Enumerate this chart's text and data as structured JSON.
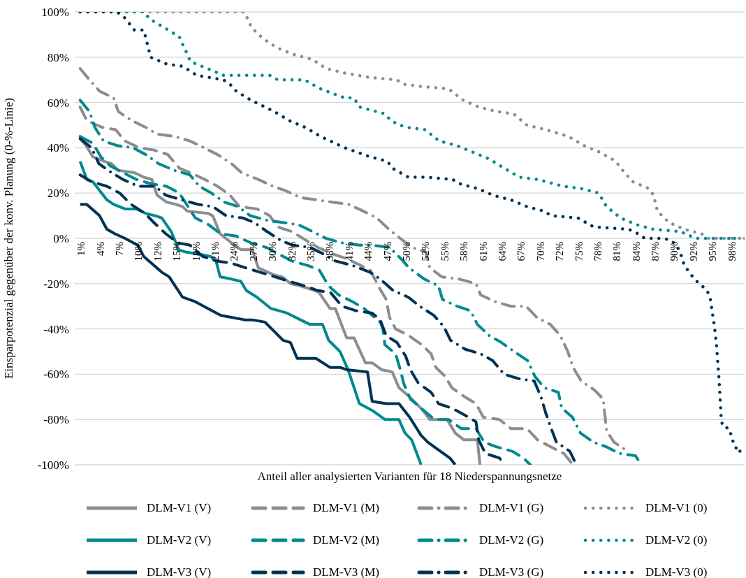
{
  "chart_data": {
    "type": "line",
    "xlabel": "Anteil aller analysierten Varianten für 18 Niederspannungsnetze",
    "ylabel": "Einsparpotenzial gegenüber der konv. Planung (0-%-Linie)",
    "xlim": [
      0,
      100
    ],
    "ylim": [
      -100,
      100
    ],
    "xticks": [
      {
        "value": 0.95,
        "label": "1%"
      },
      {
        "value": 3.81,
        "label": "4%"
      },
      {
        "value": 6.67,
        "label": "7%"
      },
      {
        "value": 9.52,
        "label": "10%"
      },
      {
        "value": 12.38,
        "label": "12%"
      },
      {
        "value": 15.24,
        "label": "15%"
      },
      {
        "value": 18.1,
        "label": "18%"
      },
      {
        "value": 20.95,
        "label": "21%"
      },
      {
        "value": 23.81,
        "label": "24%"
      },
      {
        "value": 26.67,
        "label": "27%"
      },
      {
        "value": 29.52,
        "label": "30%"
      },
      {
        "value": 32.38,
        "label": "32%"
      },
      {
        "value": 35.24,
        "label": "35%"
      },
      {
        "value": 38.1,
        "label": "38%"
      },
      {
        "value": 40.95,
        "label": "41%"
      },
      {
        "value": 43.81,
        "label": "44%"
      },
      {
        "value": 46.67,
        "label": "47%"
      },
      {
        "value": 49.52,
        "label": "50%"
      },
      {
        "value": 52.38,
        "label": "52%"
      },
      {
        "value": 55.24,
        "label": "55%"
      },
      {
        "value": 58.1,
        "label": "58%"
      },
      {
        "value": 60.95,
        "label": "61%"
      },
      {
        "value": 63.81,
        "label": "64%"
      },
      {
        "value": 66.67,
        "label": "67%"
      },
      {
        "value": 69.52,
        "label": "70%"
      },
      {
        "value": 72.38,
        "label": "72%"
      },
      {
        "value": 75.24,
        "label": "75%"
      },
      {
        "value": 78.1,
        "label": "78%"
      },
      {
        "value": 80.95,
        "label": "81%"
      },
      {
        "value": 83.81,
        "label": "84%"
      },
      {
        "value": 86.67,
        "label": "87%"
      },
      {
        "value": 89.52,
        "label": "90%"
      },
      {
        "value": 92.38,
        "label": "92%"
      },
      {
        "value": 95.24,
        "label": "95%"
      },
      {
        "value": 98.1,
        "label": "98%"
      }
    ],
    "yticks": [
      {
        "value": -100,
        "label": "-100%"
      },
      {
        "value": -80,
        "label": "-80%"
      },
      {
        "value": -60,
        "label": "-60%"
      },
      {
        "value": -40,
        "label": "-40%"
      },
      {
        "value": -20,
        "label": "-20%"
      },
      {
        "value": 0,
        "label": "0%"
      },
      {
        "value": 20,
        "label": "20%"
      },
      {
        "value": 40,
        "label": "40%"
      },
      {
        "value": 60,
        "label": "60%"
      },
      {
        "value": 80,
        "label": "80%"
      },
      {
        "value": 100,
        "label": "100%"
      }
    ],
    "grid": "y",
    "legend": "bottom",
    "series": [
      {
        "name": "DLM-V1 (V)",
        "color": "#8c8c91",
        "line_style": "solid",
        "x": [
          0.8,
          1.7,
          2.7,
          4.4,
          5.5,
          6.5,
          8.9,
          10.3,
          11.5,
          12.3,
          13.7,
          15.1,
          16.1,
          16.8,
          19.9,
          20.6,
          21.7,
          23.4,
          24.8,
          26.5,
          27.4,
          29.6,
          31,
          32.2,
          33.7,
          35.8,
          36.5,
          38.1,
          38.9,
          40.6,
          41.7,
          43.4,
          44.4,
          45.8,
          47.4,
          48.4,
          50,
          52,
          53,
          55.6,
          56.8,
          58.1,
          60.1,
          60.5
        ],
        "values": [
          44,
          41,
          36,
          34,
          33,
          30,
          29,
          27,
          26,
          19,
          16,
          15,
          14,
          12,
          11,
          10,
          2,
          -2,
          -5,
          -5,
          -13,
          -16,
          -17,
          -20,
          -21,
          -23,
          -24,
          -31,
          -31,
          -44,
          -44,
          -55,
          -55,
          -58,
          -59,
          -66,
          -70,
          -76,
          -80,
          -80,
          -86,
          -89,
          -89,
          -100
        ]
      },
      {
        "name": "DLM-V1 (M)",
        "color": "#8c8c91",
        "line_style": "dashed",
        "x": [
          0.8,
          1.8,
          4.1,
          6.1,
          7.5,
          9.6,
          11.8,
          13.9,
          15.6,
          17.3,
          19.4,
          21.3,
          23.2,
          24.6,
          27.2,
          29.1,
          30.3,
          32.4,
          34.6,
          36.3,
          38.6,
          40.6,
          42.7,
          44.1,
          45.5,
          46.5,
          47,
          47.9,
          49.9,
          51.8,
          53.2,
          53.9,
          55.3,
          56.3,
          58.2,
          59.9,
          61,
          63.4,
          65.1,
          67.5,
          69.1,
          71,
          73,
          74.4
        ],
        "values": [
          58,
          52,
          49,
          48,
          43,
          40,
          39,
          37,
          31,
          29,
          26,
          23,
          19,
          14,
          13,
          10,
          5,
          3,
          -1,
          -4,
          -7,
          -9,
          -12,
          -14,
          -22,
          -27,
          -35,
          -40,
          -43,
          -47,
          -51,
          -57,
          -61,
          -66,
          -70,
          -73,
          -79,
          -80,
          -84,
          -84,
          -89,
          -92,
          -95,
          -100
        ]
      },
      {
        "name": "DLM-V1 (G)",
        "color": "#8c8c91",
        "line_style": "dashdot",
        "x": [
          0.8,
          2.2,
          3.7,
          5.8,
          6.5,
          8.5,
          10.6,
          12.3,
          14.9,
          17.2,
          19.3,
          21.3,
          23.4,
          24.9,
          27.4,
          29.6,
          31.5,
          33.7,
          36.1,
          38.4,
          40.9,
          43.1,
          45.1,
          46.9,
          48.6,
          50.3,
          52.4,
          53,
          54.8,
          57.4,
          59.9,
          60.6,
          62.8,
          65.1,
          67.4,
          69,
          71,
          72.5,
          73.6,
          74.4,
          75.6,
          77.6,
          78.9,
          79.1,
          79.4,
          80.5,
          82
        ],
        "values": [
          75,
          70,
          65,
          62,
          56,
          52,
          49,
          46,
          45,
          43,
          40,
          37,
          33,
          29,
          26,
          23,
          21,
          18,
          17,
          16,
          15,
          12,
          9,
          4,
          0,
          -4,
          -6,
          -13,
          -17,
          -18,
          -20,
          -25,
          -28,
          -30,
          -30,
          -35,
          -38,
          -43,
          -50,
          -57,
          -63,
          -67,
          -71,
          -77,
          -85,
          -90,
          -93
        ]
      },
      {
        "name": "DLM-V1 (0)",
        "color": "#8c8c91",
        "line_style": "dotted",
        "x": [
          0.8,
          25.3,
          25.8,
          26.4,
          28.2,
          30.3,
          32.9,
          35.5,
          37.5,
          40.3,
          44.1,
          48,
          49.3,
          52,
          55.8,
          58,
          60.3,
          63,
          65.5,
          67.5,
          70.3,
          73.7,
          76,
          78.4,
          80.8,
          81.5,
          83.3,
          85.7,
          86.4,
          87,
          88.7,
          91,
          93.6,
          94.6,
          100
        ],
        "values": [
          100,
          100,
          97,
          93,
          88,
          84,
          81,
          79,
          75,
          73,
          71,
          70,
          68,
          67,
          66,
          61,
          58,
          56,
          55,
          50,
          48,
          45,
          41,
          38,
          34,
          31,
          25,
          22,
          19,
          12,
          7,
          4,
          2,
          0,
          0
        ]
      },
      {
        "name": "DLM-V2 (V)",
        "color": "#00898e",
        "line_style": "solid",
        "x": [
          0.8,
          1.8,
          2.7,
          4.8,
          5.8,
          7.5,
          9.2,
          10.6,
          12,
          13,
          14.4,
          15.1,
          15.4,
          16.5,
          18.6,
          20.3,
          21.1,
          21.7,
          23.4,
          24.8,
          25.6,
          27.2,
          29.3,
          31.7,
          33.7,
          35.1,
          37,
          37.9,
          39.6,
          40.8,
          42.5,
          44.4,
          46.3,
          48.4,
          49.3,
          50.3,
          51.7
        ],
        "values": [
          34,
          26,
          25,
          17,
          15,
          13,
          13,
          11,
          10,
          9,
          3,
          -2,
          -5,
          -6,
          -7,
          -8,
          -10,
          -17,
          -18,
          -19,
          -23,
          -26,
          -31,
          -33,
          -36,
          -38,
          -38,
          -45,
          -50,
          -58,
          -73,
          -76,
          -80,
          -80,
          -86,
          -89,
          -100
        ]
      },
      {
        "name": "DLM-V2 (M)",
        "color": "#00898e",
        "line_style": "dashed",
        "x": [
          0.8,
          2.7,
          3.9,
          5.3,
          7.2,
          9.2,
          11.5,
          13.7,
          15.6,
          16.7,
          18,
          20,
          21.8,
          24.1,
          26.3,
          28.6,
          30.5,
          32.4,
          34.8,
          36.5,
          37.9,
          39.4,
          41.5,
          43.2,
          45.6,
          46,
          46.3,
          47.9,
          48.6,
          49.1,
          50.1,
          51.7,
          53.7,
          55.8,
          57.7,
          59.9,
          61.1,
          62.9,
          65.3,
          67,
          68
        ],
        "values": [
          45,
          42,
          36,
          32,
          29,
          26,
          24,
          23,
          20,
          15,
          9,
          6,
          2,
          1,
          -2,
          -4,
          -7,
          -10,
          -12,
          -14,
          -21,
          -25,
          -28,
          -31,
          -37,
          -40,
          -47,
          -51,
          -58,
          -64,
          -71,
          -75,
          -80,
          -80,
          -84,
          -84,
          -90,
          -92,
          -94,
          -97,
          -100
        ]
      },
      {
        "name": "DLM-V2 (G)",
        "color": "#00898e",
        "line_style": "dashdot",
        "x": [
          0.8,
          2.2,
          3,
          4.3,
          6.3,
          8.7,
          10.6,
          12.5,
          14.9,
          17.2,
          18.6,
          20.4,
          22.3,
          24.4,
          26.2,
          28.7,
          31,
          33.4,
          35.5,
          37.5,
          39.9,
          42.5,
          44.4,
          47,
          48.7,
          49.9,
          52.2,
          54.3,
          54.9,
          57.1,
          59.1,
          60.1,
          61.9,
          63.7,
          65.6,
          67.6,
          68.7,
          70.1,
          72.2,
          72.7,
          74.3,
          75.5,
          77.4,
          79.3,
          81.3,
          83.7,
          84.6
        ],
        "values": [
          61,
          56,
          49,
          43,
          41,
          40,
          37,
          33,
          30,
          28,
          23,
          20,
          16,
          14,
          10,
          8,
          7,
          6,
          3,
          0,
          -2,
          -3,
          -3,
          -4,
          -9,
          -13,
          -18,
          -21,
          -27,
          -30,
          -32,
          -38,
          -43,
          -46,
          -50,
          -54,
          -61,
          -66,
          -68,
          -75,
          -79,
          -86,
          -90,
          -92,
          -95,
          -96,
          -100
        ]
      },
      {
        "name": "DLM-V2 (0)",
        "color": "#00898e",
        "line_style": "dotted",
        "x": [
          0.8,
          10.4,
          11.1,
          13.4,
          15.6,
          16.2,
          16.7,
          17.3,
          19.8,
          22.2,
          26.3,
          29.1,
          30.3,
          34.3,
          35.5,
          36.7,
          40.3,
          41.7,
          42.5,
          46.3,
          47.2,
          48.5,
          49.6,
          52.3,
          54.4,
          57,
          59.5,
          61.9,
          64.1,
          66.4,
          69.1,
          72.9,
          75.6,
          78.2,
          79.4,
          81.5,
          83.9,
          86.4,
          90.4,
          92.7,
          98.5
        ],
        "values": [
          100,
          100,
          97,
          93,
          89,
          85,
          82,
          78,
          75,
          72,
          72,
          72,
          70,
          70,
          68,
          66,
          62,
          62,
          58,
          55,
          52,
          50,
          49,
          48,
          43,
          41,
          38,
          35,
          31,
          27,
          26,
          23,
          22,
          20,
          14,
          9,
          6,
          4,
          3,
          0,
          0
        ]
      },
      {
        "name": "DLM-V3 (V)",
        "color": "#003253",
        "line_style": "solid",
        "x": [
          0.8,
          1.8,
          3.7,
          4.8,
          6,
          7.5,
          9.4,
          10.3,
          13,
          14.1,
          16.1,
          18,
          19.9,
          21.8,
          25.4,
          26.5,
          28.4,
          31.1,
          32.2,
          33.2,
          36,
          38.1,
          39.6,
          40.6,
          43.7,
          44.4,
          46.5,
          48.4,
          50,
          51.7,
          52.7,
          54.1,
          56,
          56.8
        ],
        "values": [
          15,
          15,
          10,
          4,
          2,
          0,
          -3,
          -8,
          -15,
          -17,
          -26,
          -28,
          -31,
          -34,
          -36,
          -36,
          -37,
          -45,
          -46,
          -53,
          -53,
          -57,
          -57,
          -58,
          -59,
          -72,
          -73,
          -73,
          -79,
          -87,
          -90,
          -93,
          -97,
          -100
        ]
      },
      {
        "name": "DLM-V3 (M)",
        "color": "#003253",
        "line_style": "dashed",
        "x": [
          0.8,
          2.5,
          4.8,
          6.7,
          8.4,
          10.5,
          11.8,
          13.6,
          15.4,
          17.2,
          19.1,
          21.1,
          23.4,
          25.5,
          27.7,
          29.9,
          32,
          34.3,
          36.2,
          38.2,
          39.9,
          42,
          44.4,
          45.6,
          46.5,
          48.1,
          49.4,
          50.1,
          51.3,
          53.2,
          54.3,
          56.3,
          58.2,
          59.9,
          60.3,
          61.3,
          63.4,
          64.1
        ],
        "values": [
          28,
          25,
          23,
          20,
          15,
          11,
          7,
          2,
          -2,
          -3,
          -8,
          -10,
          -11,
          -13,
          -15,
          -17,
          -19,
          -21,
          -23,
          -24,
          -30,
          -32,
          -33,
          -36,
          -43,
          -46,
          -52,
          -58,
          -64,
          -68,
          -73,
          -75,
          -78,
          -81,
          -89,
          -95,
          -97,
          -100
        ]
      },
      {
        "name": "DLM-V3 (G)",
        "color": "#003253",
        "line_style": "dashdot",
        "x": [
          0.8,
          2.5,
          3.6,
          5.5,
          7.2,
          9.5,
          12,
          13.6,
          16,
          18.4,
          20.6,
          22.6,
          25.1,
          26.8,
          28.7,
          30.8,
          32.5,
          35.1,
          37.2,
          38.9,
          41.5,
          44.1,
          45.6,
          47.5,
          49.8,
          51.5,
          53.6,
          55.1,
          56.1,
          58.3,
          60.6,
          62.4,
          64.1,
          66.3,
          68.6,
          69.6,
          70.3,
          71,
          71.9,
          73.9,
          74.9
        ],
        "values": [
          44,
          40,
          33,
          29,
          26,
          23,
          23,
          19,
          17,
          15,
          14,
          10,
          9,
          7,
          3,
          -1,
          -3,
          -4,
          -7,
          -10,
          -12,
          -15,
          -18,
          -23,
          -26,
          -30,
          -34,
          -39,
          -45,
          -49,
          -51,
          -54,
          -60,
          -62,
          -63,
          -70,
          -77,
          -83,
          -90,
          -94,
          -100
        ]
      },
      {
        "name": "DLM-V3 (0)",
        "color": "#003253",
        "line_style": "dotted",
        "x": [
          0.8,
          6.3,
          7.3,
          8.9,
          10.3,
          11,
          11.3,
          13.7,
          16.1,
          18.2,
          22.2,
          23.2,
          24.1,
          26.3,
          29.8,
          32,
          34.4,
          36.7,
          40.3,
          44.1,
          46.7,
          47.4,
          49.8,
          52.4,
          56.4,
          57.6,
          60.1,
          62.5,
          65.1,
          67.5,
          70.1,
          71.1,
          75.1,
          76.3,
          77.5,
          82.7,
          84.1,
          85.1,
          87.9,
          89.1,
          90,
          90.6,
          91,
          92.5,
          94.4,
          94.9,
          95.5,
          95.8,
          96.2,
          96.5,
          96.7,
          97.7,
          98.1,
          98.5,
          99.3
        ],
        "values": [
          100,
          100,
          98,
          92,
          92,
          84,
          80,
          77,
          76,
          72,
          70,
          68,
          65,
          61,
          56,
          52,
          49,
          45,
          40,
          36,
          34,
          31,
          27,
          27,
          26,
          24,
          22,
          19,
          17,
          14,
          12,
          10,
          9,
          7,
          5,
          4,
          2,
          0,
          0,
          -1,
          -4,
          -8,
          -12,
          -18,
          -23,
          -27,
          -39,
          -47,
          -63,
          -79,
          -83,
          -84,
          -88,
          -92,
          -94
        ]
      }
    ]
  }
}
